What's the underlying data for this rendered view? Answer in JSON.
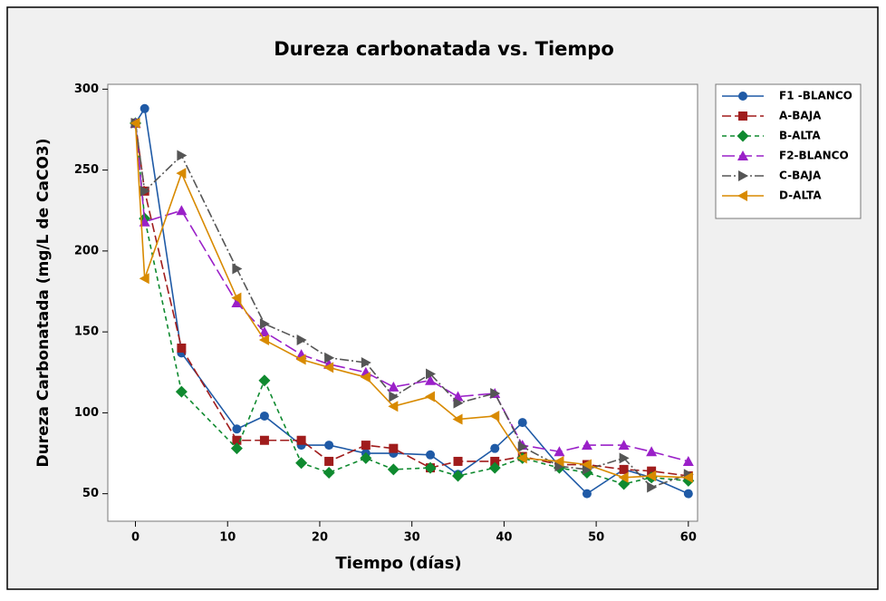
{
  "chart_data": {
    "type": "line",
    "title": "Dureza carbonatada vs. Tiempo",
    "x_label": "Tiempo (días)",
    "y_label": "Dureza Carbonatada (mg/L de CaCO3)",
    "x": [
      0,
      1,
      5,
      11,
      14,
      18,
      21,
      25,
      28,
      32,
      35,
      39,
      42,
      46,
      49,
      53,
      56,
      60
    ],
    "series": [
      {
        "name": "F1 -BLANCO",
        "color": "#1f5aa6",
        "marker": "circle",
        "dash": "none",
        "values": [
          279,
          288,
          137,
          90,
          98,
          80,
          80,
          75,
          75,
          74,
          62,
          78,
          94,
          67,
          50,
          65,
          60,
          50
        ]
      },
      {
        "name": "A-BAJA",
        "color": "#a01c1c",
        "marker": "square",
        "dash": "10,4",
        "values": [
          279,
          237,
          140,
          83,
          83,
          83,
          70,
          80,
          78,
          66,
          70,
          70,
          73,
          68,
          68,
          65,
          64,
          61
        ]
      },
      {
        "name": "B-ALTA",
        "color": "#0f8a2f",
        "marker": "diamond",
        "dash": "5,4",
        "values": [
          279,
          220,
          113,
          78,
          120,
          69,
          63,
          72,
          65,
          66,
          61,
          66,
          72,
          66,
          63,
          56,
          60,
          58
        ]
      },
      {
        "name": "F2-BLANCO",
        "color": "#9a20c8",
        "marker": "triangle-up",
        "dash": "14,5",
        "values": [
          279,
          218,
          225,
          168,
          150,
          136,
          130,
          125,
          116,
          120,
          110,
          112,
          80,
          76,
          80,
          80,
          76,
          70
        ]
      },
      {
        "name": "C-BAJA",
        "color": "#555555",
        "marker": "triangle-right",
        "dash": "10,3,2,3",
        "values": [
          279,
          237,
          259,
          189,
          155,
          145,
          134,
          131,
          110,
          124,
          106,
          112,
          79,
          67,
          65,
          72,
          54,
          62
        ]
      },
      {
        "name": "D-ALTA",
        "color": "#d88a00",
        "marker": "triangle-left",
        "dash": "none",
        "values": [
          279,
          183,
          248,
          171,
          145,
          133,
          128,
          122,
          104,
          110,
          96,
          98,
          72,
          70,
          68,
          60,
          61,
          60
        ]
      }
    ],
    "xlim": [
      -3,
      61
    ],
    "xticks": [
      0,
      10,
      20,
      30,
      40,
      50,
      60
    ],
    "ylim": [
      33,
      303
    ],
    "yticks": [
      50,
      100,
      150,
      200,
      250,
      300
    ],
    "legend": "right"
  }
}
